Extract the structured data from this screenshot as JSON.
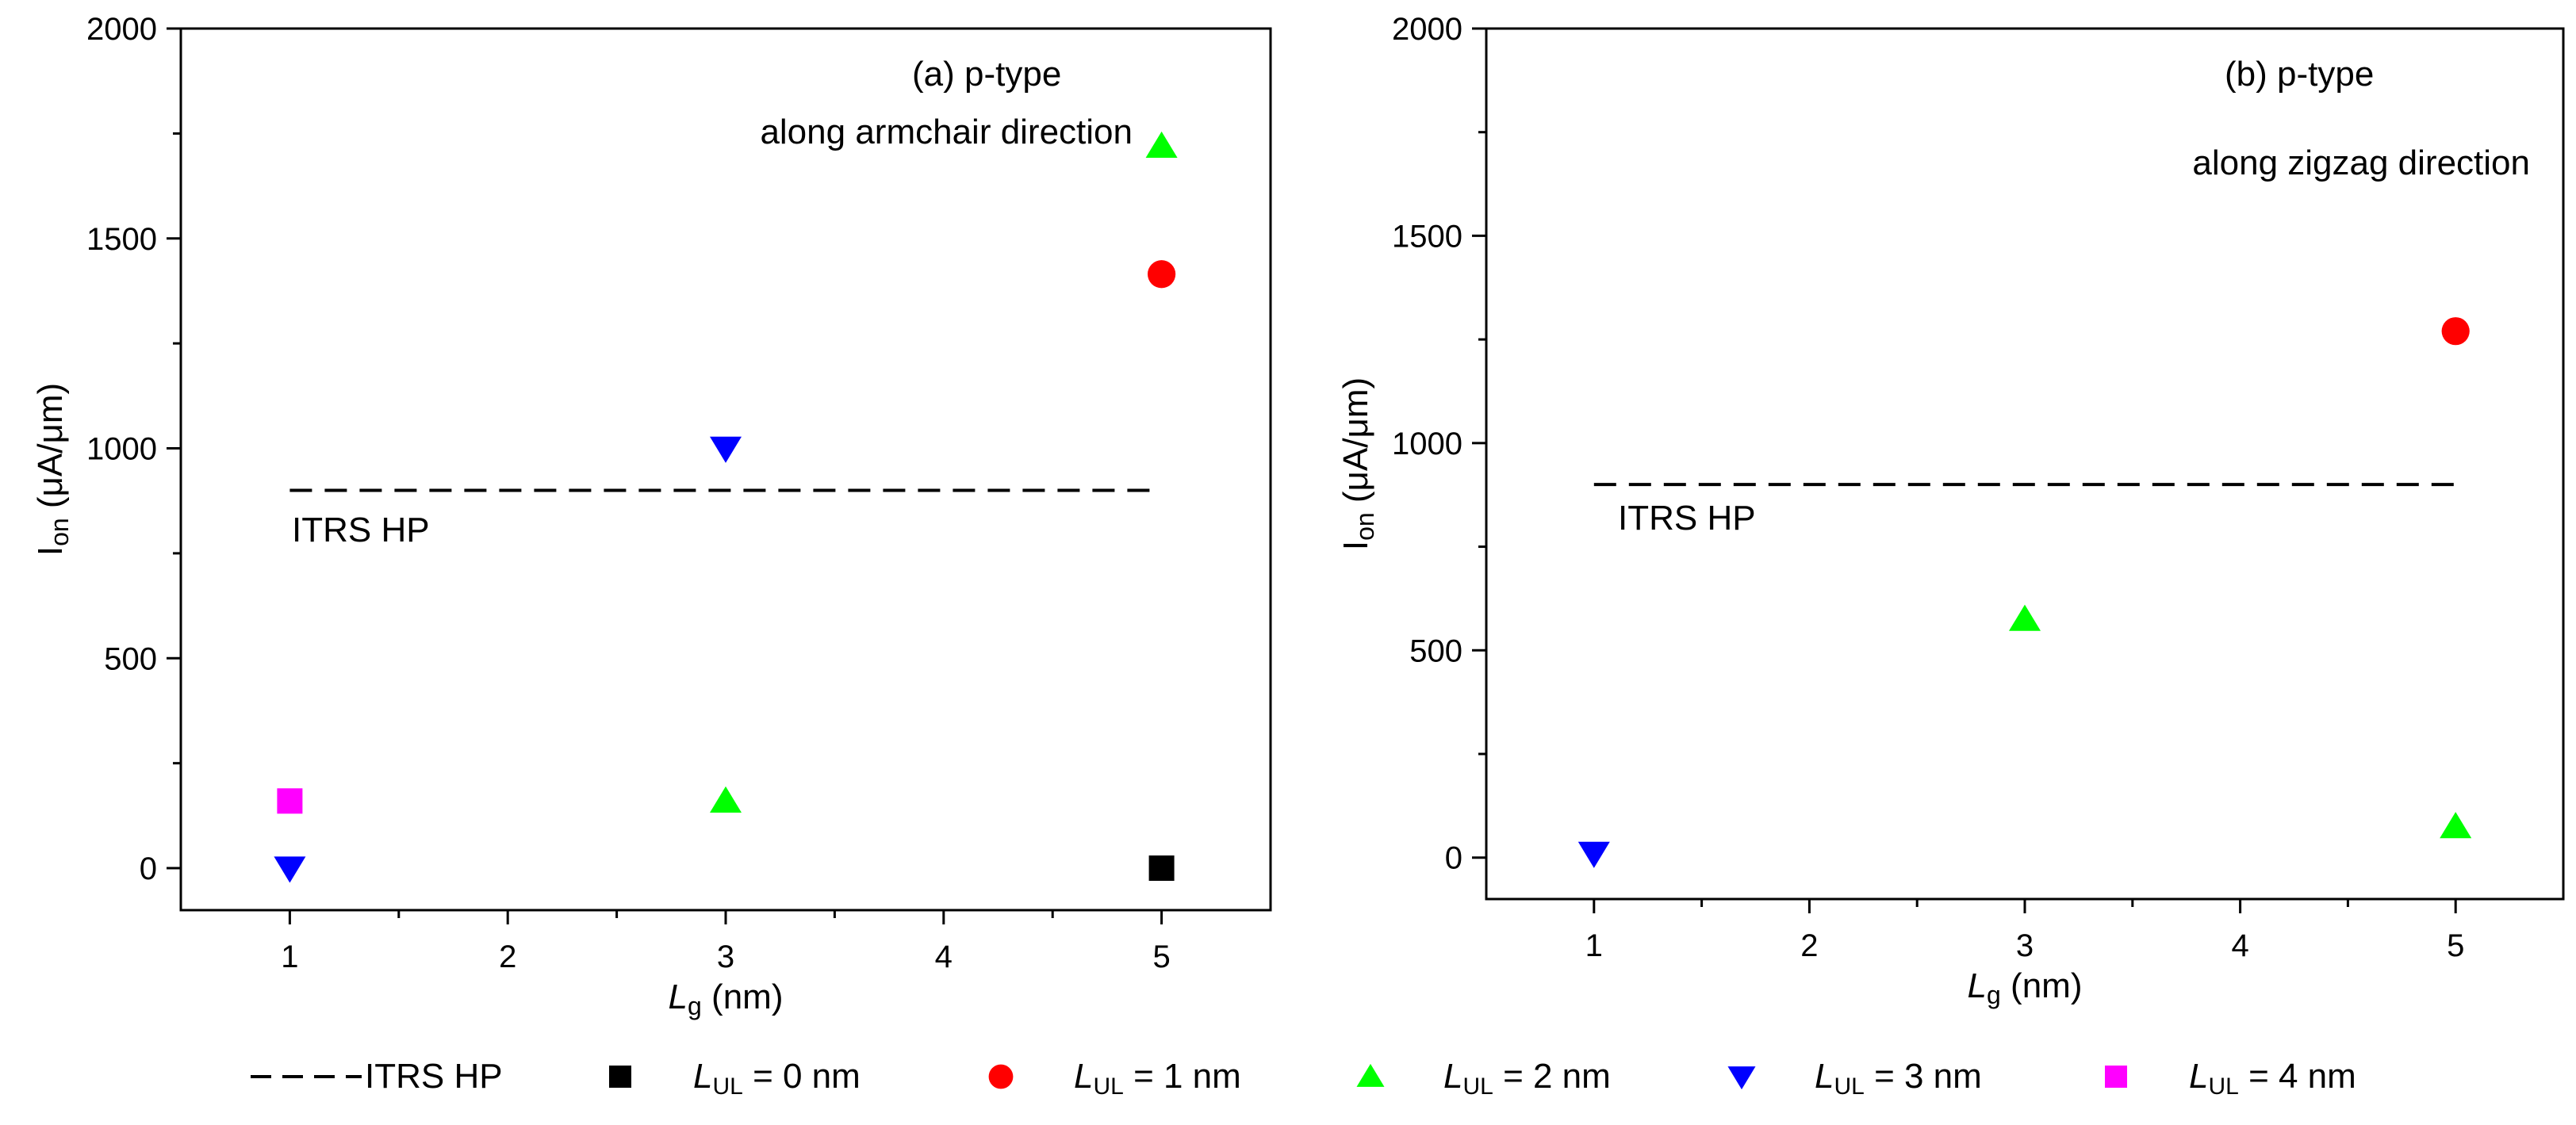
{
  "chart_data": [
    {
      "type": "scatter",
      "panel_label": "(a)",
      "carrier_label": "p-type",
      "direction_label": "along armchair direction",
      "xlabel_italic": "L",
      "xlabel_sub": "g",
      "xlabel_unit": " (nm)",
      "ylabel_main": "I",
      "ylabel_sub": "on",
      "ylabel_unit": " (μA/μm)",
      "xlim": [
        0.5,
        5.5
      ],
      "ylim": [
        -100,
        2000
      ],
      "xticks": [
        "1",
        "2",
        "3",
        "4",
        "5"
      ],
      "yticks": [
        "0",
        "500",
        "1000",
        "1500",
        "2000"
      ],
      "reference": {
        "name": "ITRS HP",
        "label": "ITRS HP",
        "y": 900,
        "x_range": [
          1.0,
          5.0
        ]
      },
      "series": [
        {
          "name": "L_UL = 0 nm",
          "marker": "square",
          "color": "#000000",
          "points": [
            {
              "x": 5,
              "y": 0
            }
          ]
        },
        {
          "name": "L_UL = 1 nm",
          "marker": "circle",
          "color": "#ff0000",
          "points": [
            {
              "x": 5,
              "y": 1415
            }
          ]
        },
        {
          "name": "L_UL = 2 nm",
          "marker": "triangle-up",
          "color": "#00ff00",
          "points": [
            {
              "x": 3,
              "y": 160
            },
            {
              "x": 5,
              "y": 1720
            }
          ]
        },
        {
          "name": "L_UL = 3 nm",
          "marker": "triangle-down",
          "color": "#0000ff",
          "points": [
            {
              "x": 1,
              "y": 0
            },
            {
              "x": 3,
              "y": 1000
            }
          ]
        },
        {
          "name": "L_UL = 4 nm",
          "marker": "square",
          "color": "#ff00ff",
          "points": [
            {
              "x": 1,
              "y": 160
            }
          ]
        }
      ]
    },
    {
      "type": "scatter",
      "panel_label": "(b)",
      "carrier_label": "p-type",
      "direction_label": "along zigzag direction",
      "xlabel_italic": "L",
      "xlabel_sub": "g",
      "xlabel_unit": " (nm)",
      "ylabel_main": "I",
      "ylabel_sub": "on",
      "ylabel_unit": " (μA/μm)",
      "xlim": [
        0.5,
        5.5
      ],
      "ylim": [
        -100,
        2000
      ],
      "xticks": [
        "1",
        "2",
        "3",
        "4",
        "5"
      ],
      "yticks": [
        "0",
        "500",
        "1000",
        "1500",
        "2000"
      ],
      "reference": {
        "name": "ITRS HP",
        "label": "ITRS HP",
        "y": 900,
        "x_range": [
          1.0,
          5.0
        ]
      },
      "series": [
        {
          "name": "L_UL = 1 nm",
          "marker": "circle",
          "color": "#ff0000",
          "points": [
            {
              "x": 5,
              "y": 1270
            }
          ]
        },
        {
          "name": "L_UL = 2 nm",
          "marker": "triangle-up",
          "color": "#00ff00",
          "points": [
            {
              "x": 3,
              "y": 575
            },
            {
              "x": 5,
              "y": 75
            }
          ]
        },
        {
          "name": "L_UL = 3 nm",
          "marker": "triangle-down",
          "color": "#0000ff",
          "points": [
            {
              "x": 1,
              "y": 10
            }
          ]
        }
      ]
    }
  ],
  "legend": {
    "placement": "bottom",
    "entries": [
      {
        "marker": "dash",
        "color": "#000000",
        "label_plain": "ITRS HP"
      },
      {
        "marker": "square",
        "color": "#000000",
        "italic": "L",
        "sub": "UL",
        "rest": " = 0 nm"
      },
      {
        "marker": "circle",
        "color": "#ff0000",
        "italic": "L",
        "sub": "UL",
        "rest": " = 1 nm"
      },
      {
        "marker": "triangle-up",
        "color": "#00ff00",
        "italic": "L",
        "sub": "UL",
        "rest": " = 2 nm"
      },
      {
        "marker": "triangle-down",
        "color": "#0000ff",
        "italic": "L",
        "sub": "UL",
        "rest": " = 3 nm"
      },
      {
        "marker": "square",
        "color": "#ff00ff",
        "italic": "L",
        "sub": "UL",
        "rest": " = 4 nm"
      }
    ]
  }
}
